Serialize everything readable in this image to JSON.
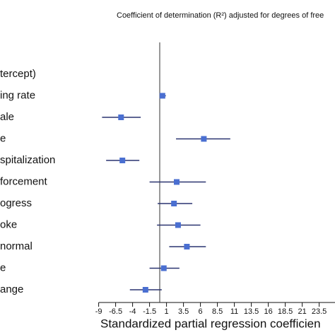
{
  "chart_data": {
    "type": "forest",
    "title": "Coefficient of determination (R²) adjusted for degrees of free",
    "x_label": "Standardized partial regression coefficien",
    "categories": [
      "tercept)",
      "ing rate",
      "ale",
      "e",
      "spitalization",
      "forcement",
      "ogress",
      "oke",
      "normal",
      "e",
      "ange"
    ],
    "values": [
      null,
      0.4,
      -5.7,
      6.5,
      -5.5,
      2.5,
      2.1,
      2.7,
      4.0,
      0.6,
      -2.1
    ],
    "lower": [
      null,
      0.1,
      -8.5,
      2.4,
      -7.9,
      -1.5,
      -0.3,
      -0.4,
      1.4,
      -1.5,
      -4.4
    ],
    "upper": [
      null,
      0.9,
      -2.8,
      10.4,
      -3.0,
      6.8,
      4.8,
      6.0,
      6.8,
      2.9,
      0.3
    ],
    "color": "#4a6fd1",
    "line_color": "#2a3470",
    "xlim": [
      -9,
      26
    ],
    "xticks": [
      -9,
      -6.5,
      -4,
      -1.5,
      1,
      3.5,
      6,
      8.5,
      11,
      13.5,
      16,
      18.5,
      21,
      23.5
    ],
    "reference_line": 0
  }
}
